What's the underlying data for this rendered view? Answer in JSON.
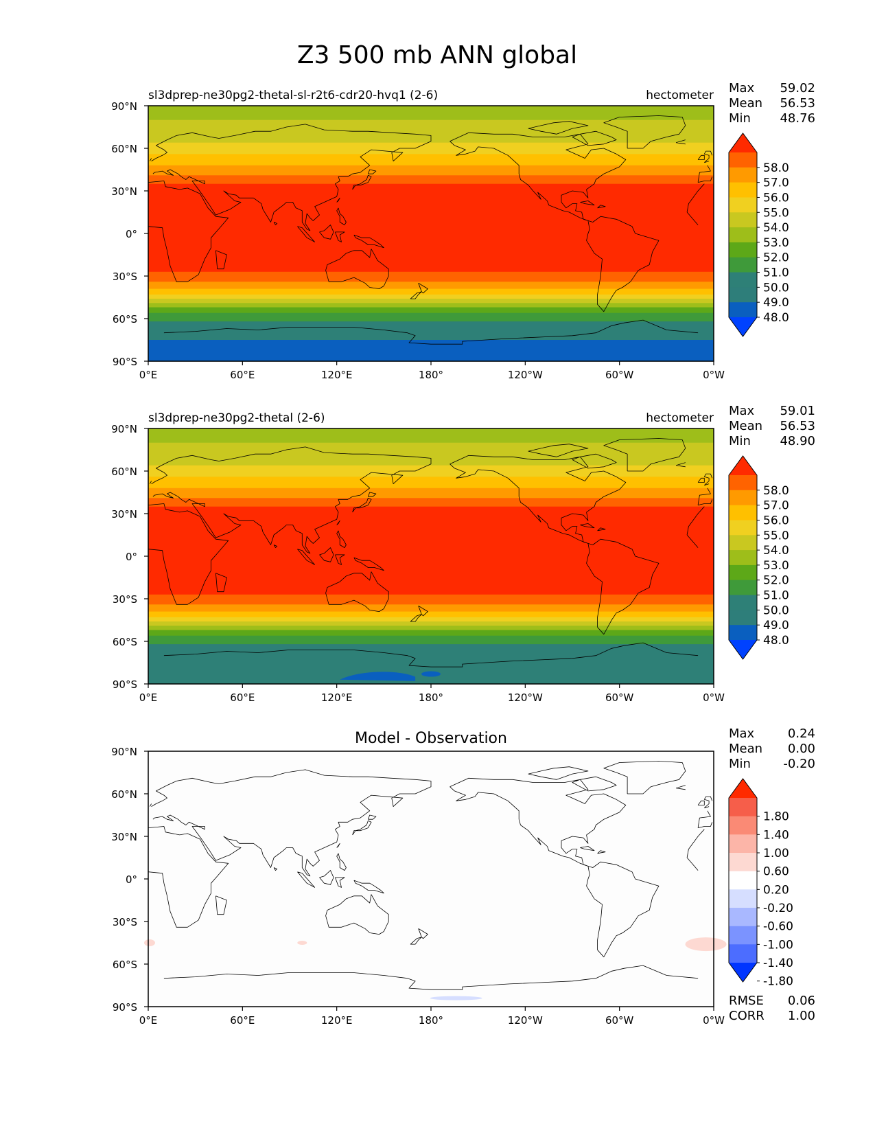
{
  "figure": {
    "title": "Z3 500 mb ANN global"
  },
  "x_ticks": [
    "0°E",
    "60°E",
    "120°E",
    "180°",
    "120°W",
    "60°W",
    "0°W"
  ],
  "y_ticks": [
    "90°N",
    "60°N",
    "30°N",
    "0°",
    "30°S",
    "60°S",
    "90°S"
  ],
  "chart_data": [
    {
      "type": "heatmap",
      "panel": "test",
      "title": "sl3dprep-ne30pg2-thetal-sl-r2t6-cdr20-hvq1 (2-6)",
      "units": "hectometer",
      "stats": [
        {
          "label": "Max",
          "value": "59.02"
        },
        {
          "label": "Mean",
          "value": "56.53"
        },
        {
          "label": "Min",
          "value": "48.76"
        }
      ],
      "colorbar_levels": [
        "58.0",
        "57.0",
        "56.0",
        "55.0",
        "54.0",
        "53.0",
        "52.0",
        "51.0",
        "50.0",
        "49.0",
        "48.0"
      ],
      "colors": [
        "#ff2a00",
        "#ff6300",
        "#ff9a00",
        "#ffc000",
        "#f0d020",
        "#c9c820",
        "#9ebe1a",
        "#5da818",
        "#3f9a3a",
        "#2e8077",
        "#2e7e7a",
        "#0a5fbf",
        "#0042ff"
      ],
      "x_range": [
        "0°E",
        "0°W"
      ],
      "y_range": [
        "90°S",
        "90°N"
      ]
    },
    {
      "type": "heatmap",
      "panel": "reference",
      "title": "sl3dprep-ne30pg2-thetal (2-6)",
      "units": "hectometer",
      "stats": [
        {
          "label": "Max",
          "value": "59.01"
        },
        {
          "label": "Mean",
          "value": "56.53"
        },
        {
          "label": "Min",
          "value": "48.90"
        }
      ],
      "colorbar_levels": [
        "58.0",
        "57.0",
        "56.0",
        "55.0",
        "54.0",
        "53.0",
        "52.0",
        "51.0",
        "50.0",
        "49.0",
        "48.0"
      ],
      "colors": [
        "#ff2a00",
        "#ff6300",
        "#ff9a00",
        "#ffc000",
        "#f0d020",
        "#c9c820",
        "#9ebe1a",
        "#5da818",
        "#3f9a3a",
        "#2e8077",
        "#2e7e7a",
        "#0a5fbf",
        "#0042ff"
      ],
      "x_range": [
        "0°E",
        "0°W"
      ],
      "y_range": [
        "90°S",
        "90°N"
      ]
    },
    {
      "type": "heatmap",
      "panel": "difference",
      "title": "Model - Observation",
      "units": "",
      "stats": [
        {
          "label": "Max",
          "value": "0.24"
        },
        {
          "label": "Mean",
          "value": "0.00"
        },
        {
          "label": "Min",
          "value": "-0.20"
        }
      ],
      "colorbar_levels": [
        "1.80",
        "1.40",
        "1.00",
        "0.60",
        "0.20",
        "-0.20",
        "-0.60",
        "-1.00",
        "-1.40",
        "-1.80"
      ],
      "colors": [
        "#ff2a00",
        "#f65e4a",
        "#fa8a75",
        "#fcb5a8",
        "#fdd9d2",
        "#ffffff",
        "#d6deff",
        "#a9b8ff",
        "#7b93ff",
        "#4c6dff",
        "#0035ff"
      ],
      "footer_stats": [
        {
          "label": "RMSE",
          "value": "0.06"
        },
        {
          "label": "CORR",
          "value": "1.00"
        }
      ],
      "x_range": [
        "0°E",
        "0°W"
      ],
      "y_range": [
        "90°S",
        "90°N"
      ]
    }
  ]
}
